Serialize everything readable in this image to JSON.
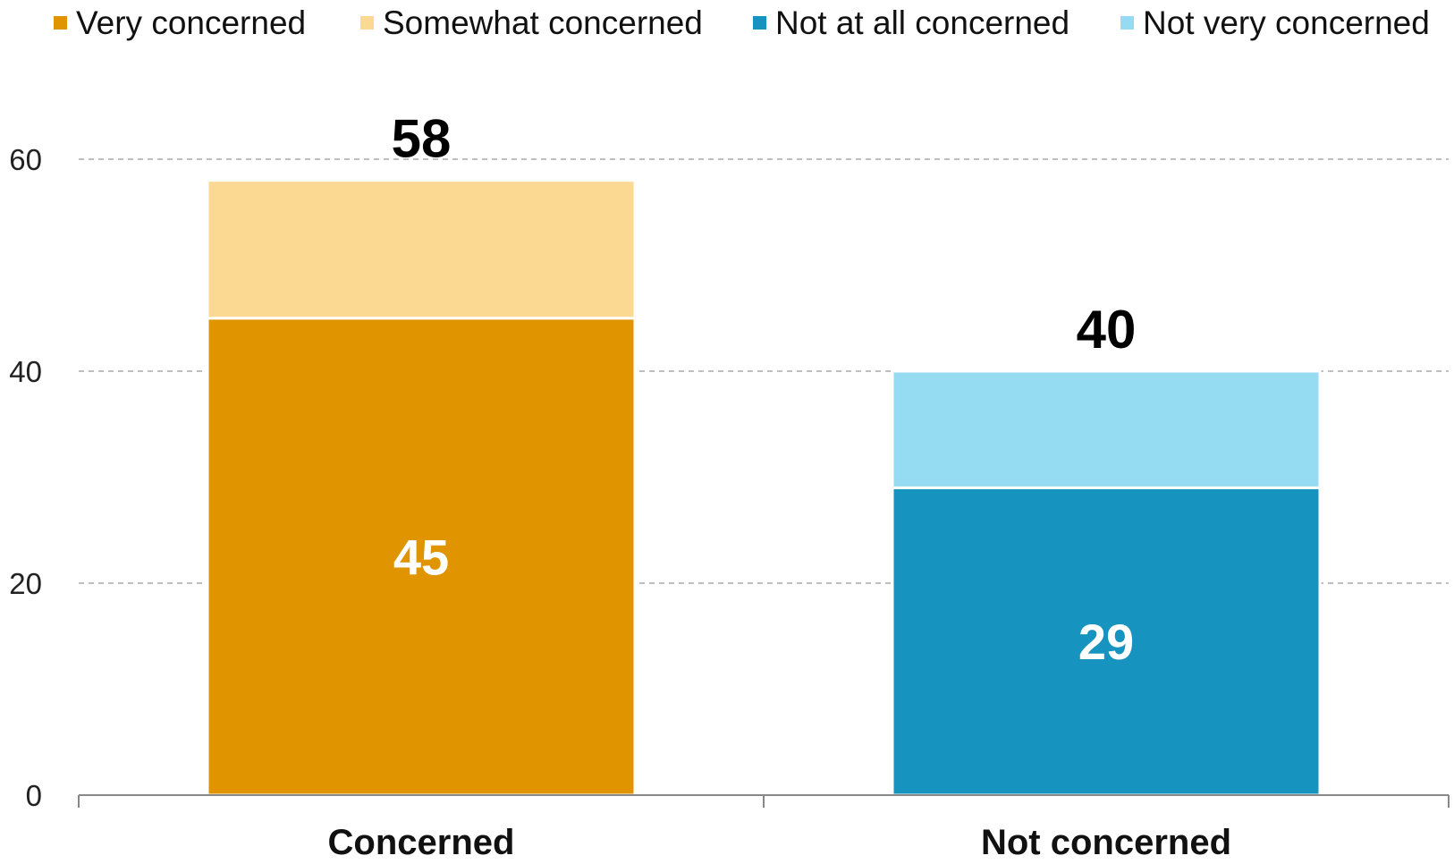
{
  "chart_data": {
    "type": "bar",
    "stacked": true,
    "categories": [
      "Concerned",
      "Not concerned"
    ],
    "ylim": [
      0,
      60
    ],
    "yticks": [
      0,
      20,
      40,
      60
    ],
    "grid": true,
    "legend_position": "top",
    "legend": [
      {
        "name": "Very concerned",
        "color": "#E09500"
      },
      {
        "name": "Somewhat concerned",
        "color": "#FCD993"
      },
      {
        "name": "Not at all concerned",
        "color": "#1793BF"
      },
      {
        "name": "Not very concerned",
        "color": "#95DBF2"
      }
    ],
    "bars": [
      {
        "category": "Concerned",
        "total": 58,
        "segments": [
          {
            "series": "Very concerned",
            "value": 45,
            "label": "45",
            "color": "#E09500"
          },
          {
            "series": "Somewhat concerned",
            "value": 13,
            "label": "",
            "color": "#FCD993"
          }
        ]
      },
      {
        "category": "Not concerned",
        "total": 40,
        "segments": [
          {
            "series": "Not at all concerned",
            "value": 29,
            "label": "29",
            "color": "#1793BF"
          },
          {
            "series": "Not very concerned",
            "value": 11,
            "label": "",
            "color": "#95DBF2"
          }
        ]
      }
    ]
  }
}
